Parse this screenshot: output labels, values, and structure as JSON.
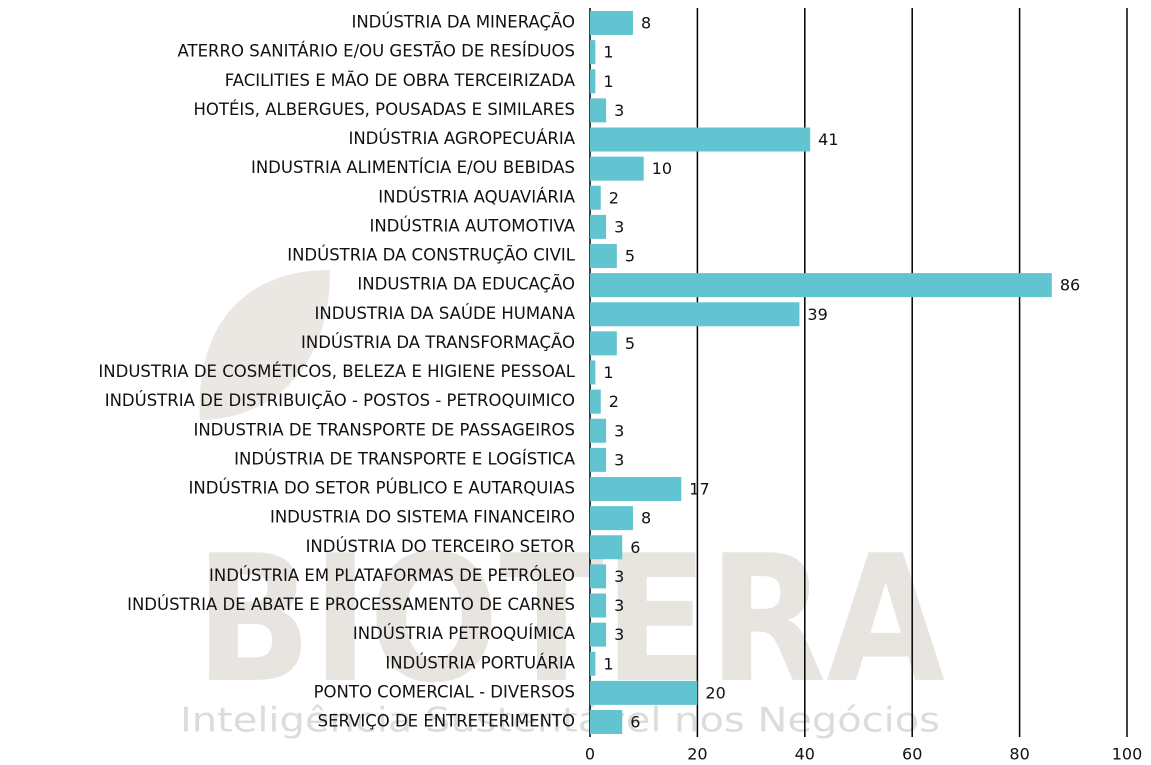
{
  "chart_data": {
    "type": "bar",
    "orientation": "horizontal",
    "watermark": "BIOTERA",
    "watermark_tagline": "Inteligência Sustentável nos Negócios",
    "categories": [
      "INDÚSTRIA DA MINERAÇÃO",
      "ATERRO SANITÁRIO E/OU GESTÃO DE RESÍDUOS",
      "FACILITIES E MÃO DE OBRA TERCEIRIZADA",
      "HOTÉIS, ALBERGUES, POUSADAS E SIMILARES",
      "INDÚSTRIA AGROPECUÁRIA",
      "INDUSTRIA ALIMENTÍCIA E/OU BEBIDAS",
      "INDÚSTRIA AQUAVIÁRIA",
      "INDÚSTRIA AUTOMOTIVA",
      "INDÚSTRIA DA CONSTRUÇÃO CIVIL",
      "INDUSTRIA DA EDUCAÇÃO",
      "INDUSTRIA DA SAÚDE HUMANA",
      "INDÚSTRIA DA TRANSFORMAÇÃO",
      "INDUSTRIA DE COSMÉTICOS, BELEZA E HIGIENE PESSOAL",
      "INDÚSTRIA DE DISTRIBUIÇÃO - POSTOS - PETROQUIMICO",
      "INDUSTRIA DE TRANSPORTE DE PASSAGEIROS",
      "INDÚSTRIA DE TRANSPORTE E LOGÍSTICA",
      "INDÚSTRIA DO SETOR PÚBLICO E AUTARQUIAS",
      "INDUSTRIA DO SISTEMA FINANCEIRO",
      "INDÚSTRIA DO TERCEIRO SETOR",
      "INDÚSTRIA EM PLATAFORMAS DE PETRÓLEO",
      "INDÚSTRIA DE ABATE E PROCESSAMENTO DE CARNES",
      "INDÚSTRIA PETROQUÍMICA",
      "INDÚSTRIA PORTUÁRIA",
      "PONTO COMERCIAL - DIVERSOS",
      "SERVIÇO DE ENTRETERIMENTO"
    ],
    "values": [
      8,
      1,
      1,
      3,
      41,
      10,
      2,
      3,
      5,
      86,
      39,
      5,
      1,
      2,
      3,
      3,
      17,
      8,
      6,
      3,
      3,
      3,
      1,
      20,
      6
    ],
    "color": "#62c3d1",
    "xlim": [
      0,
      100
    ],
    "xticks": [
      0,
      20,
      40,
      60,
      80,
      100
    ],
    "grid": true
  }
}
